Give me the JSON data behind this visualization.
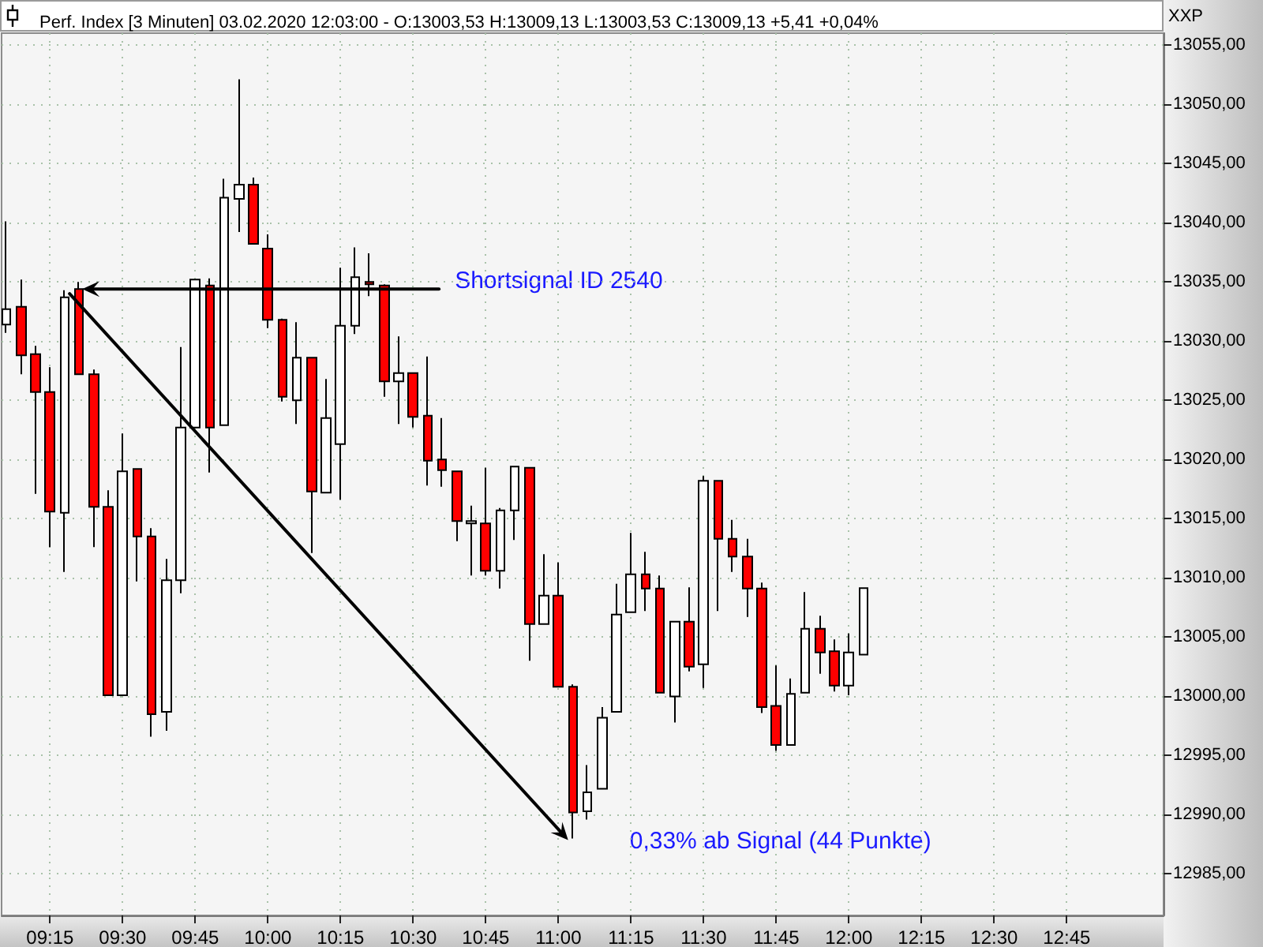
{
  "chart_data": {
    "type": "candlestick",
    "title": "Perf. Index [3 Minuten] 03.02.2020 12:03:00 - O:13003,53 H:13009,13 L:13003,53 C:13009,13 +5,41 +0,04%",
    "ylabel": "XXP",
    "x": [
      "2020-02-03T09:06",
      "2020-02-03T09:09",
      "2020-02-03T09:12",
      "2020-02-03T09:15",
      "2020-02-03T09:18",
      "2020-02-03T09:21",
      "2020-02-03T09:24",
      "2020-02-03T09:27",
      "2020-02-03T09:30",
      "2020-02-03T09:33",
      "2020-02-03T09:36",
      "2020-02-03T09:39",
      "2020-02-03T09:42",
      "2020-02-03T09:45",
      "2020-02-03T09:48",
      "2020-02-03T09:51",
      "2020-02-03T09:54",
      "2020-02-03T09:57",
      "2020-02-03T10:00",
      "2020-02-03T10:03",
      "2020-02-03T10:06",
      "2020-02-03T10:09",
      "2020-02-03T10:12",
      "2020-02-03T10:15",
      "2020-02-03T10:18",
      "2020-02-03T10:21",
      "2020-02-03T10:24",
      "2020-02-03T10:27",
      "2020-02-03T10:30",
      "2020-02-03T10:33",
      "2020-02-03T10:36",
      "2020-02-03T10:39",
      "2020-02-03T10:42",
      "2020-02-03T10:45",
      "2020-02-03T10:48",
      "2020-02-03T10:51",
      "2020-02-03T10:54",
      "2020-02-03T10:57",
      "2020-02-03T11:00",
      "2020-02-03T11:03",
      "2020-02-03T11:06",
      "2020-02-03T11:09",
      "2020-02-03T11:12",
      "2020-02-03T11:15",
      "2020-02-03T11:18",
      "2020-02-03T11:21",
      "2020-02-03T11:24",
      "2020-02-03T11:27",
      "2020-02-03T11:30",
      "2020-02-03T11:33",
      "2020-02-03T11:36",
      "2020-02-03T11:39",
      "2020-02-03T11:42",
      "2020-02-03T11:45",
      "2020-02-03T11:48",
      "2020-02-03T11:51",
      "2020-02-03T11:54",
      "2020-02-03T11:57",
      "2020-02-03T12:00",
      "2020-02-03T12:03"
    ],
    "ohlc": [
      [
        13031.4,
        13040.1,
        13030.7,
        13032.7
      ],
      [
        13032.9,
        13035.2,
        13027.2,
        13028.8
      ],
      [
        13028.9,
        13029.6,
        13017.1,
        13025.7
      ],
      [
        13025.7,
        13027.8,
        13012.6,
        13015.6
      ],
      [
        13015.5,
        13034.3,
        13010.5,
        13033.7
      ],
      [
        13034.4,
        13035.0,
        13027.2,
        13027.2
      ],
      [
        13027.2,
        13027.6,
        13012.6,
        13016.0
      ],
      [
        13016.0,
        13017.4,
        13000.1,
        13000.1
      ],
      [
        13000.1,
        13022.2,
        13000.1,
        13019.0
      ],
      [
        13019.2,
        13019.2,
        13009.7,
        13013.5
      ],
      [
        13013.5,
        13014.2,
        12996.6,
        12998.5
      ],
      [
        12998.7,
        13011.6,
        12997.1,
        13009.8
      ],
      [
        13009.8,
        13029.5,
        13008.7,
        13022.7
      ],
      [
        13022.7,
        13035.2,
        13022.7,
        13035.2
      ],
      [
        13034.7,
        13035.3,
        13018.9,
        13022.7
      ],
      [
        13022.9,
        13043.7,
        13022.9,
        13042.1
      ],
      [
        13042.0,
        13052.1,
        13039.2,
        13043.2
      ],
      [
        13043.2,
        13043.8,
        13038.2,
        13038.2
      ],
      [
        13037.8,
        13039.0,
        13031.1,
        13031.8
      ],
      [
        13031.8,
        13031.9,
        13024.9,
        13025.3
      ],
      [
        13025.0,
        13031.6,
        13023.0,
        13028.6
      ],
      [
        13028.6,
        13028.6,
        13012.1,
        13017.3
      ],
      [
        13017.2,
        13026.8,
        13017.2,
        13023.5
      ],
      [
        13021.3,
        13036.2,
        13016.6,
        13031.3
      ],
      [
        13031.3,
        13037.9,
        13030.6,
        13035.4
      ],
      [
        13035.0,
        13037.4,
        13033.8,
        13034.8
      ],
      [
        13034.7,
        13034.8,
        13025.3,
        13026.6
      ],
      [
        13026.6,
        13030.4,
        13023.0,
        13027.3
      ],
      [
        13027.3,
        13027.3,
        13022.7,
        13023.6
      ],
      [
        13023.7,
        13028.7,
        13017.8,
        13019.9
      ],
      [
        13020.0,
        13023.5,
        13017.7,
        13019.1
      ],
      [
        13019.0,
        13019.0,
        13013.1,
        13014.8
      ],
      [
        13014.6,
        13016.1,
        13010.2,
        13014.8
      ],
      [
        13014.6,
        13019.3,
        13010.2,
        13010.6
      ],
      [
        13010.6,
        13015.9,
        13009.1,
        13015.7
      ],
      [
        13015.7,
        13019.4,
        13013.2,
        13019.4
      ],
      [
        13019.3,
        13019.3,
        13003.0,
        13006.1
      ],
      [
        13006.1,
        13012.0,
        13006.1,
        13008.5
      ],
      [
        13008.5,
        13011.3,
        13000.8,
        13000.8
      ],
      [
        13000.8,
        13001.0,
        12988.0,
        12990.2
      ],
      [
        12990.3,
        12994.2,
        12989.6,
        12991.9
      ],
      [
        12992.2,
        12999.1,
        12992.2,
        12998.2
      ],
      [
        12998.7,
        13009.5,
        12998.7,
        13006.9
      ],
      [
        13007.1,
        13013.8,
        13007.1,
        13010.3
      ],
      [
        13010.3,
        13012.2,
        13007.2,
        13009.1
      ],
      [
        13009.1,
        13010.2,
        13000.3,
        13000.3
      ],
      [
        13000.0,
        13006.3,
        12997.8,
        13006.3
      ],
      [
        13006.3,
        13009.2,
        13002.1,
        13002.5
      ],
      [
        13002.7,
        13018.6,
        13000.7,
        13018.2
      ],
      [
        13018.2,
        13018.2,
        13007.2,
        13013.3
      ],
      [
        13013.3,
        13014.9,
        13010.5,
        13011.8
      ],
      [
        13011.8,
        13013.3,
        13006.7,
        13009.1
      ],
      [
        13009.1,
        13009.6,
        12998.6,
        12999.1
      ],
      [
        12999.2,
        13002.6,
        12995.4,
        12995.9
      ],
      [
        12995.9,
        13001.5,
        12995.9,
        13000.2
      ],
      [
        13000.3,
        13008.8,
        13000.3,
        13005.7
      ],
      [
        13005.7,
        13006.8,
        13001.9,
        13003.7
      ],
      [
        13003.8,
        13004.8,
        13000.4,
        13000.9
      ],
      [
        13000.9,
        13005.3,
        13000.1,
        13003.7
      ],
      [
        13003.53,
        13009.13,
        13003.53,
        13009.13
      ]
    ],
    "colors": [
      "#ffffff",
      "#ff0000",
      "#ff0000",
      "#ff0000",
      "#ffffff",
      "#ff0000",
      "#ff0000",
      "#ff0000",
      "#ffffff",
      "#ff0000",
      "#ff0000",
      "#ffffff",
      "#ffffff",
      "#ffffff",
      "#ff0000",
      "#ffffff",
      "#ffffff",
      "#ff0000",
      "#ff0000",
      "#ff0000",
      "#ffffff",
      "#ff0000",
      "#ffffff",
      "#ffffff",
      "#ffffff",
      "#ff0000",
      "#ff0000",
      "#ffffff",
      "#ff0000",
      "#ff0000",
      "#ff0000",
      "#ff0000",
      "#ffffff",
      "#ff0000",
      "#ffffff",
      "#ffffff",
      "#ff0000",
      "#ffffff",
      "#ff0000",
      "#ff0000",
      "#ffffff",
      "#ffffff",
      "#ffffff",
      "#ffffff",
      "#ff0000",
      "#ff0000",
      "#ffffff",
      "#ff0000",
      "#ffffff",
      "#ff0000",
      "#ff0000",
      "#ff0000",
      "#ff0000",
      "#ff0000",
      "#ffffff",
      "#ffffff",
      "#ff0000",
      "#ff0000",
      "#ffffff",
      "#ffffff"
    ],
    "xlim": [
      "2020-02-03T09:05",
      "2020-02-03T13:05"
    ],
    "xticks": [
      {
        "value": "2020-02-03T09:15",
        "label": "09:15"
      },
      {
        "value": "2020-02-03T09:30",
        "label": "09:30"
      },
      {
        "value": "2020-02-03T09:45",
        "label": "09:45"
      },
      {
        "value": "2020-02-03T10:00",
        "label": "10:00"
      },
      {
        "value": "2020-02-03T10:15",
        "label": "10:15"
      },
      {
        "value": "2020-02-03T10:30",
        "label": "10:30"
      },
      {
        "value": "2020-02-03T10:45",
        "label": "10:45"
      },
      {
        "value": "2020-02-03T11:00",
        "label": "11:00"
      },
      {
        "value": "2020-02-03T11:15",
        "label": "11:15"
      },
      {
        "value": "2020-02-03T11:30",
        "label": "11:30"
      },
      {
        "value": "2020-02-03T11:45",
        "label": "11:45"
      },
      {
        "value": "2020-02-03T12:00",
        "label": "12:00"
      },
      {
        "value": "2020-02-03T12:15",
        "label": "12:15"
      },
      {
        "value": "2020-02-03T12:30",
        "label": "12:30"
      },
      {
        "value": "2020-02-03T12:45",
        "label": "12:45"
      }
    ],
    "ylim": [
      12981.5,
      13056
    ],
    "yticks": [
      {
        "value": 12985,
        "label": "12985,00"
      },
      {
        "value": 12990,
        "label": "12990,00"
      },
      {
        "value": 12995,
        "label": "12995,00"
      },
      {
        "value": 13000,
        "label": "13000,00"
      },
      {
        "value": 13005,
        "label": "13005,00"
      },
      {
        "value": 13010,
        "label": "13010,00"
      },
      {
        "value": 13015,
        "label": "13015,00"
      },
      {
        "value": 13020,
        "label": "13020,00"
      },
      {
        "value": 13025,
        "label": "13025,00"
      },
      {
        "value": 13030,
        "label": "13030,00"
      },
      {
        "value": 13035,
        "label": "13035,00"
      },
      {
        "value": 13040,
        "label": "13040,00"
      },
      {
        "value": 13045,
        "label": "13045,00"
      },
      {
        "value": 13050,
        "label": "13050,00"
      },
      {
        "value": 13055,
        "label": "13055,00"
      }
    ],
    "annotations": [
      {
        "text": "Shortsignal ID 2540",
        "x": "2020-02-03T09:21",
        "y": 13034.4
      },
      {
        "text": "0,33% ab Signal (44 Punkte)",
        "x": "2020-02-03T11:03",
        "y": 12988.0
      }
    ],
    "grid": true
  }
}
